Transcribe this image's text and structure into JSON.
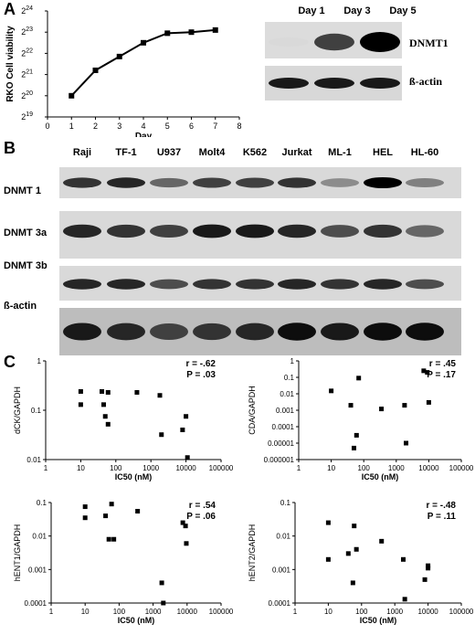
{
  "panels": {
    "a": "A",
    "b": "B",
    "c": "C"
  },
  "chart_data": [
    {
      "type": "line",
      "xlabel": "Day",
      "ylabel": "RKO Cell viability",
      "x_ticks": [
        "0",
        "1",
        "2",
        "3",
        "4",
        "5",
        "6",
        "7",
        "8"
      ],
      "y_ticks": [
        "2^19",
        "2^20",
        "2^21",
        "2^22",
        "2^23",
        "2^24"
      ],
      "y_ticks_base": [
        "2",
        "2",
        "2",
        "2",
        "2",
        "2"
      ],
      "y_ticks_exp": [
        "19",
        "20",
        "21",
        "22",
        "23",
        "24"
      ],
      "xlim": [
        0,
        8
      ],
      "ylim_log2": [
        19,
        24
      ],
      "x": [
        1,
        2,
        3,
        4,
        5,
        6,
        7
      ],
      "y_log2": [
        20.0,
        21.2,
        21.85,
        22.5,
        22.95,
        23.0,
        23.1
      ],
      "marker": "square"
    },
    {
      "type": "scatter",
      "ylabel": "dCK/GAPDH",
      "xlabel": "IC50 (nM)",
      "scale": "log-log",
      "xlim": [
        1,
        100000
      ],
      "ylim": [
        0.01,
        1
      ],
      "x_ticks": [
        "1",
        "10",
        "100",
        "1000",
        "10000",
        "100000"
      ],
      "y_ticks": [
        "0.01",
        "0.1",
        "1"
      ],
      "annotation_r": "r = -.62",
      "annotation_p": "P = .03",
      "points": [
        [
          10,
          0.24
        ],
        [
          10,
          0.13
        ],
        [
          40,
          0.24
        ],
        [
          45,
          0.13
        ],
        [
          50,
          0.075
        ],
        [
          60,
          0.23
        ],
        [
          60,
          0.052
        ],
        [
          400,
          0.23
        ],
        [
          1800,
          0.2
        ],
        [
          2000,
          0.032
        ],
        [
          8000,
          0.04
        ],
        [
          10000,
          0.075
        ],
        [
          11000,
          0.011
        ]
      ]
    },
    {
      "type": "scatter",
      "ylabel": "CDA/GAPDH",
      "xlabel": "IC50 (nM)",
      "scale": "log-log",
      "xlim": [
        1,
        100000
      ],
      "ylim": [
        1e-06,
        1
      ],
      "x_ticks": [
        "1",
        "10",
        "100",
        "1000",
        "10000",
        "100000"
      ],
      "y_ticks": [
        "0.000001",
        "0.00001",
        "0.0001",
        "0.001",
        "0.01",
        "0.1",
        "1"
      ],
      "annotation_r": "r = .45",
      "annotation_p": "P = .17",
      "points": [
        [
          10,
          0.015
        ],
        [
          40,
          0.002
        ],
        [
          50,
          5e-06
        ],
        [
          60,
          3e-05
        ],
        [
          70,
          0.09
        ],
        [
          350,
          0.0012
        ],
        [
          1800,
          0.002
        ],
        [
          2000,
          1e-05
        ],
        [
          7000,
          0.25
        ],
        [
          9000,
          0.2
        ],
        [
          10000,
          0.003
        ]
      ]
    },
    {
      "type": "scatter",
      "ylabel": "hENT1/GAPDH",
      "xlabel": "IC50 (nM)",
      "scale": "log-log",
      "xlim": [
        1,
        100000
      ],
      "ylim": [
        0.0001,
        0.1
      ],
      "x_ticks": [
        "1",
        "10",
        "100",
        "1000",
        "10000",
        "100000"
      ],
      "y_ticks": [
        "0.0001",
        "0.001",
        "0.01",
        "0.1"
      ],
      "annotation_r": "r = .54",
      "annotation_p": "P = .06",
      "points": [
        [
          10,
          0.075
        ],
        [
          10,
          0.035
        ],
        [
          40,
          0.04
        ],
        [
          50,
          0.008
        ],
        [
          60,
          0.09
        ],
        [
          70,
          0.008
        ],
        [
          350,
          0.055
        ],
        [
          1800,
          0.0004
        ],
        [
          2000,
          0.0001
        ],
        [
          7500,
          0.025
        ],
        [
          9000,
          0.02
        ],
        [
          9500,
          0.006
        ]
      ]
    },
    {
      "type": "scatter",
      "ylabel": "hENT2/GAPDH",
      "xlabel": "IC50 (nM)",
      "scale": "log-log",
      "xlim": [
        1,
        100000
      ],
      "ylim": [
        0.0001,
        0.1
      ],
      "x_ticks": [
        "1",
        "10",
        "100",
        "1000",
        "10000",
        "100000"
      ],
      "y_ticks": [
        "0.0001",
        "0.001",
        "0.01",
        "0.1"
      ],
      "annotation_r": "r = -.48",
      "annotation_p": "P = .11",
      "points": [
        [
          10,
          0.025
        ],
        [
          10,
          0.002
        ],
        [
          40,
          0.003
        ],
        [
          55,
          0.0004
        ],
        [
          60,
          0.02
        ],
        [
          70,
          0.004
        ],
        [
          400,
          0.007
        ],
        [
          1800,
          0.002
        ],
        [
          2000,
          0.00013
        ],
        [
          8000,
          0.0005
        ],
        [
          10000,
          0.0013
        ],
        [
          10000,
          0.0011
        ]
      ]
    }
  ],
  "blot_a": {
    "lanes": [
      "Day 1",
      "Day 3",
      "Day 5"
    ],
    "rows": [
      {
        "label": "DNMT1",
        "intensity": [
          0.15,
          0.75,
          1.0
        ]
      },
      {
        "label": "ß-actin",
        "intensity": [
          0.9,
          0.9,
          0.9
        ]
      }
    ]
  },
  "blot_b": {
    "lanes": [
      "Raji",
      "TF-1",
      "U937",
      "Molt4",
      "K562",
      "Jurkat",
      "ML-1",
      "HEL",
      "HL-60"
    ],
    "rows": [
      {
        "label": "DNMT 1",
        "intensity": [
          0.8,
          0.85,
          0.6,
          0.75,
          0.75,
          0.8,
          0.45,
          1.0,
          0.5
        ]
      },
      {
        "label": "DNMT 3a",
        "intensity": [
          0.85,
          0.8,
          0.75,
          0.9,
          0.9,
          0.85,
          0.7,
          0.8,
          0.6
        ]
      },
      {
        "label": "DNMT 3b",
        "intensity": [
          0.85,
          0.85,
          0.7,
          0.8,
          0.8,
          0.85,
          0.8,
          0.85,
          0.7
        ]
      },
      {
        "label": "ß-actin",
        "intensity": [
          0.9,
          0.85,
          0.75,
          0.8,
          0.85,
          0.95,
          0.9,
          0.95,
          0.95
        ]
      }
    ]
  }
}
